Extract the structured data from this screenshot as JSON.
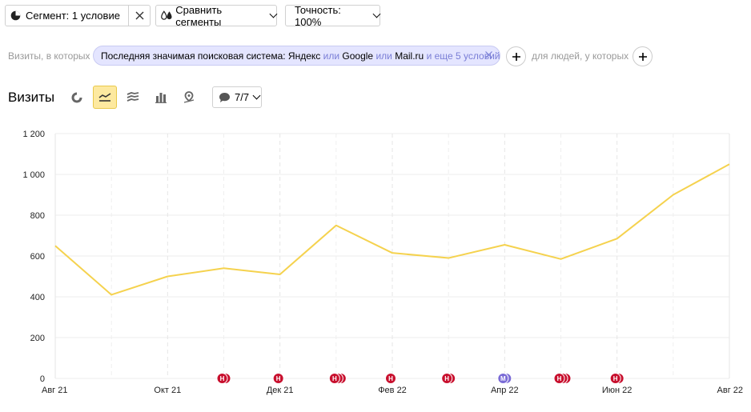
{
  "toolbar": {
    "segment_label": "Сегмент: 1 условие",
    "compare_label": "Сравнить сегменты",
    "accuracy_label": "Точность: 100%"
  },
  "filters": {
    "prefix": "Визиты, в которых",
    "condition_main": "Последняя значимая поисковая система: Яндекс",
    "or1": "или",
    "google": "Google",
    "or2": "или",
    "mailru": "Mail.ru",
    "more": "и еще 5 условий",
    "suffix": "для людей, у которых"
  },
  "chart_header": {
    "title": "Визиты",
    "notes_label": "7/7"
  },
  "colors": {
    "line": "#f5d24e",
    "note_red": "#c8102e",
    "note_purple": "#7a6bd6",
    "active_tool_bg": "#fde9a0"
  },
  "chart_data": {
    "type": "line",
    "title": "",
    "xlabel": "",
    "ylabel": "",
    "ylim": [
      0,
      1200
    ],
    "yticks": [
      0,
      200,
      400,
      600,
      800,
      1000,
      1200
    ],
    "ytick_labels": [
      "0",
      "200",
      "400",
      "600",
      "800",
      "1 000",
      "1 200"
    ],
    "xticks": [
      "Авг 21",
      "Окт 21",
      "Дек 21",
      "Фев 22",
      "Апр 22",
      "Июн 22",
      "Авг 22"
    ],
    "grid": true,
    "series": [
      {
        "x": [
          "2021-08",
          "2021-09",
          "2021-10",
          "2021-11",
          "2021-12",
          "2022-01",
          "2022-02",
          "2022-03",
          "2022-04",
          "2022-05",
          "2022-06",
          "2022-07",
          "2022-08"
        ],
        "values": [
          650,
          410,
          500,
          540,
          510,
          750,
          615,
          590,
          655,
          585,
          685,
          900,
          1050
        ]
      }
    ],
    "annotations": [
      {
        "month": "2021-11",
        "label": "Н",
        "color": "red",
        "count": 2
      },
      {
        "month": "2021-12",
        "label": "Н",
        "color": "red",
        "count": 1
      },
      {
        "month": "2022-01",
        "label": "Н",
        "color": "red",
        "count": 3
      },
      {
        "month": "2022-02",
        "label": "Н",
        "color": "red",
        "count": 1
      },
      {
        "month": "2022-03",
        "label": "Н",
        "color": "red",
        "count": 2
      },
      {
        "month": "2022-04",
        "label": "М",
        "color": "purple",
        "count": 2
      },
      {
        "month": "2022-05",
        "label": "Н",
        "color": "red",
        "count": 3
      },
      {
        "month": "2022-06",
        "label": "Н",
        "color": "red",
        "count": 2
      }
    ]
  }
}
